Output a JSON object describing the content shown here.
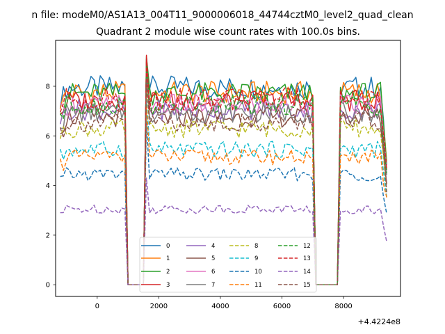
{
  "figure": {
    "suptitle": "n file: modeM0/AS1A13_004T11_9000006018_44744cztM0_level2_quad_clean",
    "offset_label": "+4.4224e8"
  },
  "chart_data": {
    "type": "line",
    "title": "Quadrant 2 module wise count rates with 100.0s bins.",
    "xlabel": "",
    "ylabel": "",
    "x_offset": 442240000,
    "xlim": [
      -1350,
      9850
    ],
    "ylim": [
      -0.47,
      9.85
    ],
    "xticks": [
      0,
      2000,
      4000,
      6000,
      8000
    ],
    "yticks": [
      0,
      2,
      4,
      6,
      8
    ],
    "grid": false,
    "legend": {
      "placement": "lower center",
      "columns": 4
    },
    "x_segments": [
      {
        "start": -1200,
        "end": 900,
        "step": 100
      },
      {
        "start": 1000,
        "end": 1500,
        "step": 100,
        "zero": true
      },
      {
        "start": 1600,
        "end": 7000,
        "step": 100
      },
      {
        "start": 7100,
        "end": 7800,
        "step": 100,
        "zero": true
      },
      {
        "start": 7900,
        "end": 9400,
        "step": 100
      }
    ],
    "series": [
      {
        "name": "0",
        "color": "#1f77b4",
        "style": "solid",
        "level": 7.95,
        "spike": 9.1
      },
      {
        "name": "1",
        "color": "#ff7f0e",
        "style": "solid",
        "level": 7.75,
        "spike": 9.0
      },
      {
        "name": "2",
        "color": "#2ca02c",
        "style": "solid",
        "level": 7.7,
        "spike": 9.2
      },
      {
        "name": "3",
        "color": "#d62728",
        "style": "solid",
        "level": 7.4,
        "spike": 9.25
      },
      {
        "name": "4",
        "color": "#9467bd",
        "style": "solid",
        "level": 7.05,
        "spike": 8.9
      },
      {
        "name": "5",
        "color": "#8c564b",
        "style": "solid",
        "level": 6.75,
        "spike": 8.8
      },
      {
        "name": "6",
        "color": "#e377c2",
        "style": "solid",
        "level": 7.25,
        "spike": 8.7
      },
      {
        "name": "7",
        "color": "#7f7f7f",
        "style": "solid",
        "level": 6.95,
        "spike": 8.6
      },
      {
        "name": "8",
        "color": "#bcbd22",
        "style": "dashed",
        "level": 6.3,
        "spike": 8.0
      },
      {
        "name": "9",
        "color": "#17becf",
        "style": "dashed",
        "level": 5.45,
        "spike": 7.4
      },
      {
        "name": "10",
        "color": "#1f77b4",
        "style": "dashed",
        "level": 4.45,
        "spike": 6.6
      },
      {
        "name": "11",
        "color": "#ff7f0e",
        "style": "dashed",
        "level": 5.15,
        "spike": 7.2
      },
      {
        "name": "12",
        "color": "#2ca02c",
        "style": "dashed",
        "level": 7.25,
        "spike": 8.9
      },
      {
        "name": "13",
        "color": "#d62728",
        "style": "dashed",
        "level": 7.5,
        "spike": 9.0
      },
      {
        "name": "14",
        "color": "#9467bd",
        "style": "dashed",
        "level": 3.05,
        "spike": 4.3
      },
      {
        "name": "15",
        "color": "#8c564b",
        "style": "dashed",
        "level": 6.55,
        "spike": 8.3
      }
    ]
  }
}
